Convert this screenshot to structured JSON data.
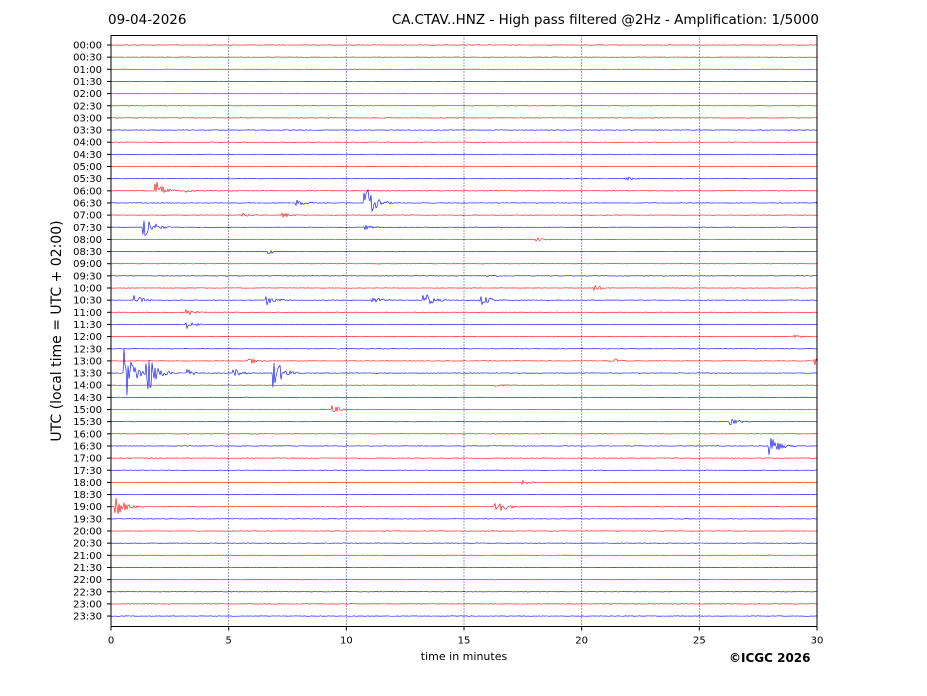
{
  "header": {
    "date": "09-04-2026",
    "title": "CA.CTAV..HNZ - High pass filtered @2Hz - Amplification: 1/5000"
  },
  "footer": {
    "copyright": "©ICGC 2026"
  },
  "colors": {
    "red_trace": "#ff0000",
    "blue_trace": "#0000ff",
    "axis": "#000000",
    "grid": "#000080"
  },
  "chart_data": {
    "type": "helicorder",
    "xlabel": "time in minutes",
    "ylabel": "UTC (local time = UTC + 02:00)",
    "xlim": [
      0,
      30
    ],
    "x_ticks": [
      0,
      5,
      10,
      15,
      20,
      25,
      30
    ],
    "vertical_grid_minutes": [
      5,
      10,
      15,
      20,
      25
    ],
    "row_labels": [
      "00:00",
      "00:30",
      "01:00",
      "01:30",
      "02:00",
      "02:30",
      "03:00",
      "03:30",
      "04:00",
      "04:30",
      "05:00",
      "05:30",
      "06:00",
      "06:30",
      "07:00",
      "07:30",
      "08:00",
      "08:30",
      "09:00",
      "09:30",
      "10:00",
      "10:30",
      "11:00",
      "11:30",
      "12:00",
      "12:30",
      "13:00",
      "13:30",
      "14:00",
      "14:30",
      "15:00",
      "15:30",
      "16:00",
      "16:30",
      "17:00",
      "17:30",
      "18:00",
      "18:30",
      "19:00",
      "19:30",
      "20:00",
      "20:30",
      "21:00",
      "21:30",
      "22:00",
      "22:30",
      "23:00",
      "23:30"
    ],
    "row_colors": [
      "red",
      "red",
      "red",
      "blue",
      "red",
      "red",
      "red",
      "blue",
      "red",
      "blue",
      "red",
      "blue",
      "red",
      "blue",
      "red",
      "blue",
      "red",
      "blue",
      "red",
      "blue",
      "red",
      "blue",
      "red",
      "blue",
      "red",
      "blue",
      "red",
      "blue",
      "red",
      "blue",
      "red",
      "blue",
      "red",
      "blue",
      "red",
      "blue",
      "red",
      "blue",
      "red",
      "blue",
      "red",
      "blue",
      "red",
      "blue",
      "red",
      "blue",
      "red",
      "blue"
    ],
    "noise_amplitude": 0.02,
    "events": [
      {
        "row": "05:30",
        "minute": 21.9,
        "amplitude": 0.18
      },
      {
        "row": "06:00",
        "minute": 1.9,
        "amplitude": 0.85
      },
      {
        "row": "06:00",
        "minute": 3.2,
        "amplitude": 0.15
      },
      {
        "row": "06:30",
        "minute": 10.8,
        "amplitude": 1.6
      },
      {
        "row": "06:30",
        "minute": 7.9,
        "amplitude": 0.3
      },
      {
        "row": "06:30",
        "minute": 30.0,
        "amplitude": 0.25
      },
      {
        "row": "07:00",
        "minute": 5.6,
        "amplitude": 0.2
      },
      {
        "row": "07:00",
        "minute": 7.3,
        "amplitude": 0.25
      },
      {
        "row": "07:30",
        "minute": 1.4,
        "amplitude": 1.2
      },
      {
        "row": "07:30",
        "minute": 10.8,
        "amplitude": 0.2
      },
      {
        "row": "08:00",
        "minute": 18.1,
        "amplitude": 0.2
      },
      {
        "row": "08:30",
        "minute": 6.7,
        "amplitude": 0.22
      },
      {
        "row": "09:30",
        "minute": 16.0,
        "amplitude": 0.2
      },
      {
        "row": "10:00",
        "minute": 20.5,
        "amplitude": 0.3
      },
      {
        "row": "10:30",
        "minute": 1.0,
        "amplitude": 0.45
      },
      {
        "row": "10:30",
        "minute": 6.6,
        "amplitude": 0.45
      },
      {
        "row": "10:30",
        "minute": 11.1,
        "amplitude": 0.35
      },
      {
        "row": "10:30",
        "minute": 13.3,
        "amplitude": 0.7
      },
      {
        "row": "10:30",
        "minute": 15.7,
        "amplitude": 0.55
      },
      {
        "row": "11:00",
        "minute": 3.2,
        "amplitude": 0.3
      },
      {
        "row": "11:30",
        "minute": 3.2,
        "amplitude": 0.4
      },
      {
        "row": "12:00",
        "minute": 29.0,
        "amplitude": 0.2
      },
      {
        "row": "13:00",
        "minute": 5.8,
        "amplitude": 0.35
      },
      {
        "row": "13:00",
        "minute": 21.4,
        "amplitude": 0.2
      },
      {
        "row": "13:00",
        "minute": 29.9,
        "amplitude": 0.35
      },
      {
        "row": "13:30",
        "minute": 0.6,
        "amplitude": 2.4
      },
      {
        "row": "13:30",
        "minute": 1.5,
        "amplitude": 2.2
      },
      {
        "row": "13:30",
        "minute": 3.2,
        "amplitude": 0.35
      },
      {
        "row": "13:30",
        "minute": 5.2,
        "amplitude": 0.4
      },
      {
        "row": "13:30",
        "minute": 6.9,
        "amplitude": 1.4
      },
      {
        "row": "14:00",
        "minute": 16.2,
        "amplitude": 0.2
      },
      {
        "row": "15:00",
        "minute": 9.4,
        "amplitude": 0.35
      },
      {
        "row": "15:30",
        "minute": 26.3,
        "amplitude": 0.35
      },
      {
        "row": "16:30",
        "minute": 28.0,
        "amplitude": 1.0
      },
      {
        "row": "18:00",
        "minute": 17.5,
        "amplitude": 0.2
      },
      {
        "row": "19:00",
        "minute": 0.2,
        "amplitude": 1.0
      },
      {
        "row": "19:00",
        "minute": 16.3,
        "amplitude": 0.9
      }
    ]
  }
}
